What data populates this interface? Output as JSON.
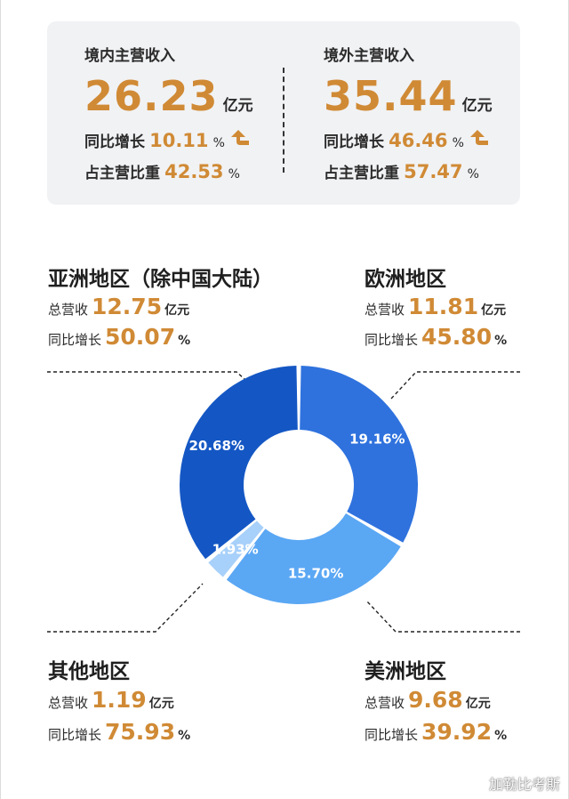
{
  "summary": {
    "domestic": {
      "title": "境内主营收入",
      "value": "26.23",
      "unit": "亿元",
      "growth_label": "同比增长",
      "growth_value": "10.11",
      "share_label": "占主营比重",
      "share_value": "42.53",
      "pct": "%"
    },
    "overseas": {
      "title": "境外主营收入",
      "value": "35.44",
      "unit": "亿元",
      "growth_label": "同比增长",
      "growth_value": "46.46",
      "share_label": "占主营比重",
      "share_value": "57.47",
      "pct": "%"
    }
  },
  "regions": {
    "asia": {
      "name": "亚洲地区（除中国大陆）",
      "rev_label": "总营收",
      "rev_value": "12.75",
      "rev_unit": "亿元",
      "growth_label": "同比增长",
      "growth_value": "50.07",
      "pct": "%"
    },
    "europe": {
      "name": "欧洲地区",
      "rev_label": "总营收",
      "rev_value": "11.81",
      "rev_unit": "亿元",
      "growth_label": "同比增长",
      "growth_value": "45.80",
      "pct": "%"
    },
    "other": {
      "name": "其他地区",
      "rev_label": "总营收",
      "rev_value": "1.19",
      "rev_unit": "亿元",
      "growth_label": "同比增长",
      "growth_value": "75.93",
      "pct": "%"
    },
    "americas": {
      "name": "美洲地区",
      "rev_label": "总营收",
      "rev_value": "9.68",
      "rev_unit": "亿元",
      "growth_label": "同比增长",
      "growth_value": "39.92",
      "pct": "%"
    }
  },
  "chart_data": {
    "type": "pie",
    "donut": true,
    "slices": [
      {
        "region": "europe",
        "value": 19.16,
        "label": "19.16%",
        "color": "#2f72de"
      },
      {
        "region": "americas",
        "value": 15.7,
        "label": "15.70%",
        "color": "#5aa7f4"
      },
      {
        "region": "other",
        "value": 1.93,
        "label": "1.93%",
        "color": "#a7d0fa"
      },
      {
        "region": "asia",
        "value": 20.68,
        "label": "20.68%",
        "color": "#1457c4"
      }
    ],
    "legend": "none",
    "title": ""
  },
  "watermark": "加勒比考斯"
}
